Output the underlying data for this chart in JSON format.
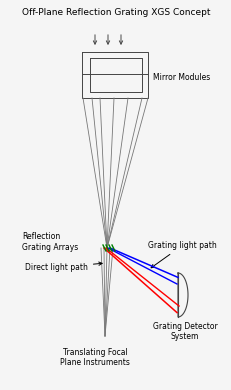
{
  "title": "Off-Plane Reflection Grating XGS Concept",
  "bg_color": "#f5f5f5",
  "title_fontsize": 6.5,
  "label_fontsize": 5.5,
  "gray": "#777777",
  "dgray": "#444444",
  "mirror_module_label": "Mirror Modules",
  "reflection_grating_label": "Reflection\nGrating Arrays",
  "direct_light_label": "Direct light path",
  "grating_light_label": "Grating light path",
  "focal_plane_label": "Translating Focal\nPlane Instruments",
  "detector_label": "Grating Detector\nSystem",
  "fig_w": 2.32,
  "fig_h": 3.9,
  "dpi": 100
}
